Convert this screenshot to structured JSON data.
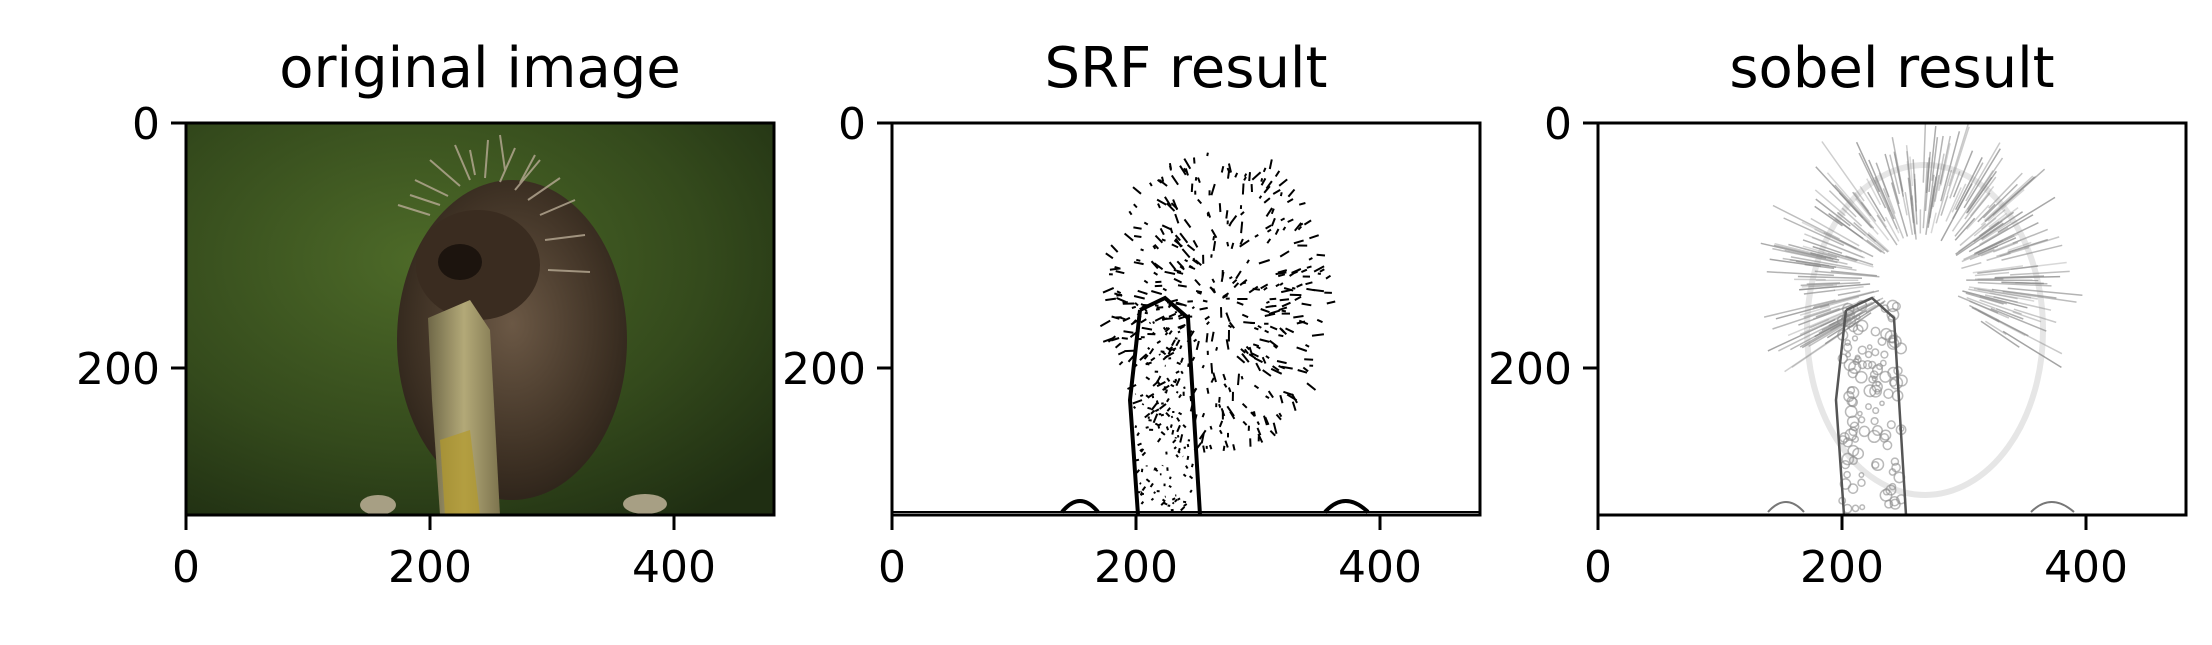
{
  "panels": [
    {
      "title": "original image",
      "content": "photo",
      "xticks": [
        "0",
        "200",
        "400"
      ],
      "yticks": [
        "0",
        "200"
      ]
    },
    {
      "title": "SRF result",
      "content": "binary-edges",
      "xticks": [
        "0",
        "200",
        "400"
      ],
      "yticks": [
        "0",
        "200"
      ]
    },
    {
      "title": "sobel result",
      "content": "sobel-edges",
      "xticks": [
        "0",
        "200",
        "400"
      ],
      "yticks": [
        "0",
        "200"
      ]
    }
  ],
  "colors": {
    "background": "#ffffff",
    "axis": "#000000",
    "photo_background": "#3a4e1f",
    "photo_animal": "#4a3a2a",
    "photo_branch": "#9a8f5e",
    "edge_dark": "#000000",
    "edge_light": "#9a9a9a"
  }
}
